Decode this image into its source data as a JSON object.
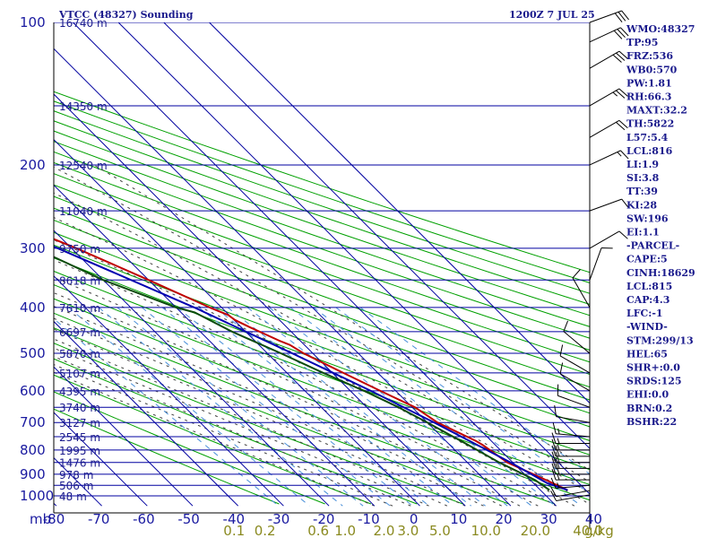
{
  "chart_data": {
    "type": "line",
    "title": "VTCC (48327) Sounding",
    "time": "1200Z  7 JUL 25",
    "pressure_levels": [
      100,
      200,
      300,
      400,
      500,
      600,
      700,
      800,
      900,
      1000
    ],
    "temperature_ticks": [
      -80,
      -70,
      -60,
      -50,
      -40,
      -30,
      -20,
      -10,
      0,
      10,
      20,
      30,
      40
    ],
    "pressure_unit_label": "mb",
    "mixing_ratio_unit_label": "g/kg",
    "mixing_ratio_labels": [
      {
        "text": "0.1",
        "w": 0.1
      },
      {
        "text": "0.2",
        "w": 0.2
      },
      {
        "text": "0.6",
        "w": 0.6
      },
      {
        "text": "1.0",
        "w": 1.0
      },
      {
        "text": "2.0",
        "w": 2.0
      },
      {
        "text": "3.0",
        "w": 3.0
      },
      {
        "text": "5.0",
        "w": 5.0
      },
      {
        "text": "10.0",
        "w": 10.0
      },
      {
        "text": "20.0",
        "w": 20.0
      },
      {
        "text": "40.0",
        "w": 40.0
      }
    ],
    "height_labels": [
      {
        "p": 100,
        "text": "16740 m"
      },
      {
        "p": 150,
        "text": "14350 m"
      },
      {
        "p": 200,
        "text": "12540 m"
      },
      {
        "p": 250,
        "text": "11040 m"
      },
      {
        "p": 300,
        "text": "9750 m"
      },
      {
        "p": 350,
        "text": "8618 m"
      },
      {
        "p": 400,
        "text": "7610 m"
      },
      {
        "p": 450,
        "text": "6697 m"
      },
      {
        "p": 500,
        "text": "5870 m"
      },
      {
        "p": 550,
        "text": "5107 m"
      },
      {
        "p": 600,
        "text": "4395 m"
      },
      {
        "p": 650,
        "text": "3740 m"
      },
      {
        "p": 700,
        "text": "3127 m"
      },
      {
        "p": 750,
        "text": "2545 m"
      },
      {
        "p": 800,
        "text": "1995 m"
      },
      {
        "p": 850,
        "text": "1476 m"
      },
      {
        "p": 900,
        "text": "978 m"
      },
      {
        "p": 950,
        "text": "506 m"
      },
      {
        "p": 1000,
        "text": "48 m"
      }
    ],
    "series": [
      {
        "name": "Temperature",
        "color": "#c00000",
        "points": [
          {
            "p": 972,
            "t": 26.0
          },
          {
            "p": 925,
            "t": 23.4
          },
          {
            "p": 850,
            "t": 18.8
          },
          {
            "p": 780,
            "t": 17.2
          },
          {
            "p": 765,
            "t": 16.6
          },
          {
            "p": 700,
            "t": 12.2
          },
          {
            "p": 650,
            "t": 10.6
          },
          {
            "p": 600,
            "t": 6.6
          },
          {
            "p": 550,
            "t": 2.4
          },
          {
            "p": 500,
            "t": -2.0
          },
          {
            "p": 480,
            "t": -3.2
          },
          {
            "p": 470,
            "t": -4.6
          },
          {
            "p": 440,
            "t": -8.2
          },
          {
            "p": 425,
            "t": -9.8
          },
          {
            "p": 415,
            "t": -10.2
          },
          {
            "p": 400,
            "t": -12.6
          },
          {
            "p": 350,
            "t": -20.0
          },
          {
            "p": 300,
            "t": -28.9
          },
          {
            "p": 250,
            "t": -41.0
          },
          {
            "p": 200,
            "t": -51.1
          },
          {
            "p": 150,
            "t": -66.5
          },
          {
            "p": 140,
            "t": -70.5
          },
          {
            "p": 100,
            "t": -80.0
          }
        ]
      },
      {
        "name": "Dewpoint",
        "color": "#0a4a0a",
        "points": [
          {
            "p": 972,
            "t": 22.0
          },
          {
            "p": 925,
            "t": 21.0
          },
          {
            "p": 850,
            "t": 17.0
          },
          {
            "p": 780,
            "t": 14.0
          },
          {
            "p": 700,
            "t": 10.0
          },
          {
            "p": 650,
            "t": 7.0
          },
          {
            "p": 600,
            "t": 3.0
          },
          {
            "p": 550,
            "t": -2.0
          },
          {
            "p": 500,
            "t": -7.0
          },
          {
            "p": 450,
            "t": -13.0
          },
          {
            "p": 410,
            "t": -17.0
          },
          {
            "p": 400,
            "t": -20.0
          },
          {
            "p": 350,
            "t": -30.0
          },
          {
            "p": 300,
            "t": -38.0
          },
          {
            "p": 250,
            "t": -46.0
          },
          {
            "p": 240,
            "t": -50.0
          },
          {
            "p": 200,
            "t": -62.0
          },
          {
            "p": 150,
            "t": -76.0
          },
          {
            "p": 120,
            "t": -88.0
          },
          {
            "p": 100,
            "t": -90.0
          }
        ]
      },
      {
        "name": "Parcel",
        "color": "#0000b0",
        "points": [
          {
            "p": 972,
            "t": 26.0
          },
          {
            "p": 940,
            "t": 23.0
          },
          {
            "p": 850,
            "t": 19.5
          },
          {
            "p": 800,
            "t": 17.0
          },
          {
            "p": 700,
            "t": 11.5
          },
          {
            "p": 600,
            "t": 4.5
          },
          {
            "p": 500,
            "t": -4.5
          },
          {
            "p": 400,
            "t": -16.0
          },
          {
            "p": 300,
            "t": -33.0
          },
          {
            "p": 250,
            "t": -44.0
          },
          {
            "p": 200,
            "t": -57.0
          },
          {
            "p": 150,
            "t": -73.0
          },
          {
            "p": 130,
            "t": -80.0
          }
        ]
      }
    ],
    "wind_barbs": [
      {
        "p": 995,
        "dir": 260,
        "spd": 10
      },
      {
        "p": 975,
        "dir": 260,
        "spd": 10
      },
      {
        "p": 950,
        "dir": 265,
        "spd": 15
      },
      {
        "p": 925,
        "dir": 270,
        "spd": 15
      },
      {
        "p": 900,
        "dir": 270,
        "spd": 20
      },
      {
        "p": 875,
        "dir": 270,
        "spd": 20
      },
      {
        "p": 850,
        "dir": 270,
        "spd": 20
      },
      {
        "p": 825,
        "dir": 270,
        "spd": 20
      },
      {
        "p": 800,
        "dir": 270,
        "spd": 15
      },
      {
        "p": 775,
        "dir": 270,
        "spd": 15
      },
      {
        "p": 750,
        "dir": 275,
        "spd": 15
      },
      {
        "p": 700,
        "dir": 280,
        "spd": 10
      },
      {
        "p": 650,
        "dir": 290,
        "spd": 10
      },
      {
        "p": 600,
        "dir": 300,
        "spd": 10
      },
      {
        "p": 550,
        "dir": 300,
        "spd": 10
      },
      {
        "p": 500,
        "dir": 310,
        "spd": 10
      },
      {
        "p": 400,
        "dir": 330,
        "spd": 10
      },
      {
        "p": 350,
        "dir": 20,
        "spd": 10
      },
      {
        "p": 300,
        "dir": 60,
        "spd": 10
      },
      {
        "p": 250,
        "dir": 70,
        "spd": 10
      },
      {
        "p": 200,
        "dir": 65,
        "spd": 15
      },
      {
        "p": 175,
        "dir": 60,
        "spd": 20
      },
      {
        "p": 150,
        "dir": 60,
        "spd": 25
      },
      {
        "p": 125,
        "dir": 60,
        "spd": 30
      },
      {
        "p": 110,
        "dir": 65,
        "spd": 30
      },
      {
        "p": 100,
        "dir": 70,
        "spd": 30
      }
    ],
    "indices": [
      "WMO:48327",
      "TP:95",
      "FRZ:536",
      "WB0:570",
      "PW:1.81",
      "RH:66.3",
      "MAXT:32.2",
      "TH:5822",
      "L57:5.4",
      "LCL:816",
      "LI:1.9",
      "SI:3.8",
      "TT:39",
      "KI:28",
      "SW:196",
      "EI:1.1",
      "-PARCEL-",
      "CAPE:5",
      "CINH:18629",
      "LCL:815",
      "CAP:4.3",
      "LFC:-1",
      "-WIND-",
      "STM:299/13",
      "HEL:65",
      "SHR+:0.0",
      "SRDS:125",
      "EHI:0.0",
      "BRN:0.2",
      "BSHR:22"
    ],
    "colors": {
      "isobar": "#0000a0",
      "isotherm": "#0000a0",
      "dry_adiabat": "#00a000",
      "moist_adiabat": "#404040",
      "mixing_ratio": "#4a90d9",
      "temperature": "#c00000",
      "dewpoint": "#0a4a0a",
      "parcel": "#0000b0",
      "wind_barb": "#000000"
    }
  }
}
